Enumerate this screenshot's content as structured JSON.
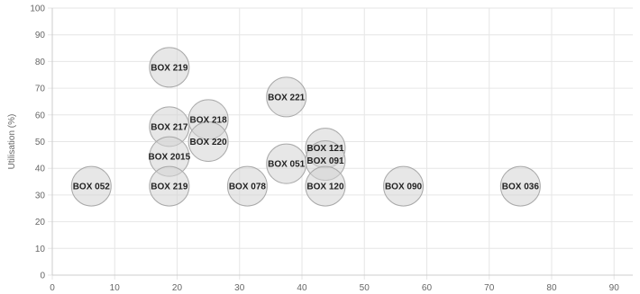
{
  "chart_data": {
    "type": "scatter",
    "subtype": "bubble",
    "title": "",
    "xlabel": "",
    "ylabel": "Utilisation (%)",
    "xlim": [
      0,
      93
    ],
    "ylim": [
      0,
      100
    ],
    "x_ticks": [
      0,
      10,
      20,
      30,
      40,
      50,
      60,
      70,
      80,
      90
    ],
    "y_ticks": [
      0,
      10,
      20,
      30,
      40,
      50,
      60,
      70,
      80,
      90,
      100
    ],
    "grid": true,
    "colors": {
      "bubble_fill": "#d3d3d3",
      "bubble_stroke": "#a9a9a9",
      "grid": "#e6e6e6"
    },
    "points": [
      {
        "label": "BOX 052",
        "x": 6.25,
        "y": 33.3
      },
      {
        "label": "BOX 219",
        "x": 18.75,
        "y": 77.8
      },
      {
        "label": "BOX 217",
        "x": 18.75,
        "y": 55.6
      },
      {
        "label": "BOX 2015",
        "x": 18.75,
        "y": 44.4
      },
      {
        "label": "BOX 219",
        "x": 18.75,
        "y": 33.3
      },
      {
        "label": "BOX 218",
        "x": 25.0,
        "y": 58.3
      },
      {
        "label": "BOX 220",
        "x": 25.0,
        "y": 50.0
      },
      {
        "label": "BOX 078",
        "x": 31.25,
        "y": 33.3
      },
      {
        "label": "BOX 221",
        "x": 37.5,
        "y": 66.7
      },
      {
        "label": "BOX 051",
        "x": 37.5,
        "y": 41.7
      },
      {
        "label": "BOX 121",
        "x": 43.75,
        "y": 47.6
      },
      {
        "label": "BOX 091",
        "x": 43.75,
        "y": 42.9
      },
      {
        "label": "BOX 120",
        "x": 43.75,
        "y": 33.3
      },
      {
        "label": "BOX 090",
        "x": 56.25,
        "y": 33.3
      },
      {
        "label": "BOX 036",
        "x": 75.0,
        "y": 33.3
      }
    ]
  }
}
